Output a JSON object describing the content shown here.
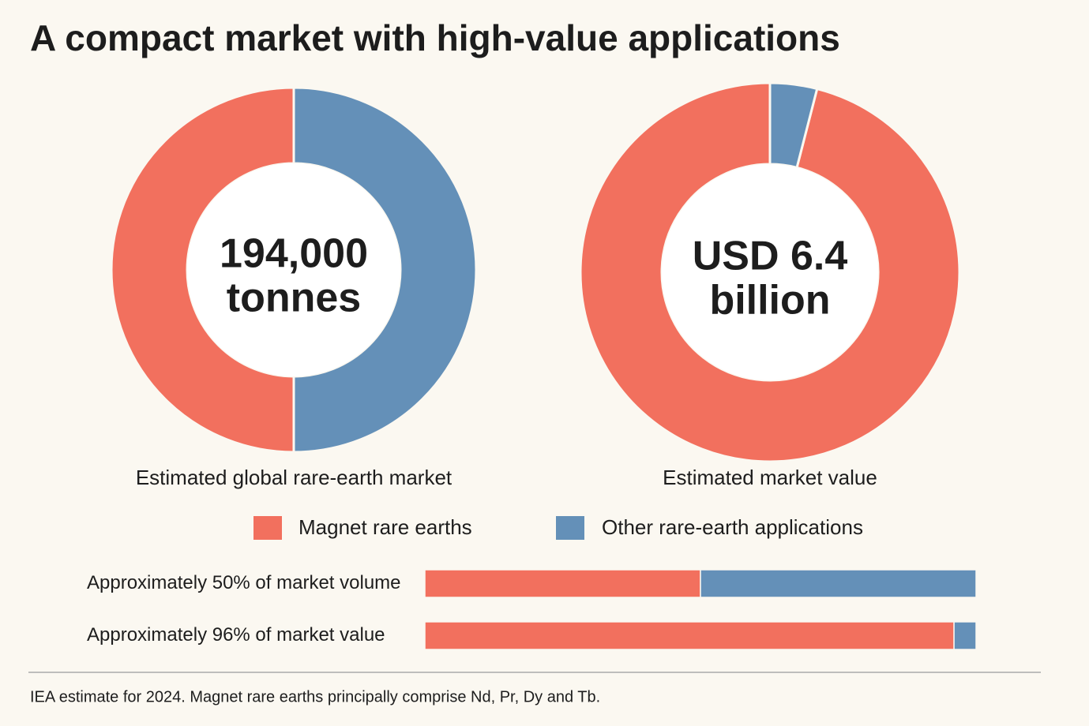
{
  "title": "A compact market with high-value applications",
  "note": "IEA estimate for 2024. Magnet rare earths principally comprise Nd, Pr, Dy and Tb.",
  "chart_data": [
    {
      "type": "pie",
      "donut": true,
      "center_label": [
        "194,000",
        "tonnes"
      ],
      "caption": "Estimated global rare-earth market",
      "values": [
        50,
        50
      ],
      "colors": [
        "#f2705e",
        "#6490b8"
      ]
    },
    {
      "type": "pie",
      "donut": true,
      "center_label": [
        "USD 6.4",
        "billion"
      ],
      "caption": "Estimated market value",
      "values": [
        96,
        4
      ],
      "colors": [
        "#f2705e",
        "#6490b8"
      ]
    },
    {
      "type": "stacked-bar",
      "categories": [
        "Approximately 50% of market volume",
        "Approximately 96% of market value"
      ],
      "series": [
        {
          "name": "Magnet rare earths",
          "color": "#f2705e",
          "values": [
            50,
            96
          ]
        },
        {
          "name": "Other rare-earth applications",
          "color": "#6490b8",
          "values": [
            50,
            4
          ]
        }
      ]
    }
  ]
}
